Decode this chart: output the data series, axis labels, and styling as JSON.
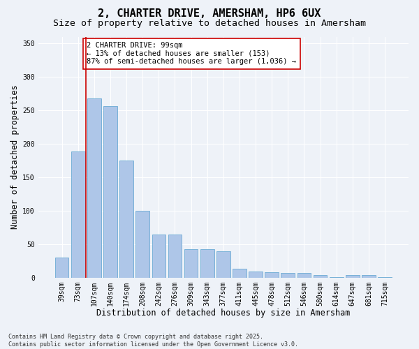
{
  "title": "2, CHARTER DRIVE, AMERSHAM, HP6 6UX",
  "subtitle": "Size of property relative to detached houses in Amersham",
  "xlabel": "Distribution of detached houses by size in Amersham",
  "ylabel": "Number of detached properties",
  "categories": [
    "39sqm",
    "73sqm",
    "107sqm",
    "140sqm",
    "174sqm",
    "208sqm",
    "242sqm",
    "276sqm",
    "309sqm",
    "343sqm",
    "377sqm",
    "411sqm",
    "445sqm",
    "478sqm",
    "512sqm",
    "546sqm",
    "580sqm",
    "614sqm",
    "647sqm",
    "681sqm",
    "715sqm"
  ],
  "values": [
    30,
    188,
    268,
    256,
    175,
    100,
    64,
    64,
    42,
    42,
    39,
    13,
    9,
    8,
    7,
    7,
    4,
    1,
    4,
    4,
    1
  ],
  "bar_color": "#aec6e8",
  "bar_edge_color": "#6aaad4",
  "vline_x_index": 2,
  "vline_color": "#cc0000",
  "annotation_text": "2 CHARTER DRIVE: 99sqm\n← 13% of detached houses are smaller (153)\n87% of semi-detached houses are larger (1,036) →",
  "annotation_box_color": "#ffffff",
  "annotation_box_edge": "#cc0000",
  "ylim": [
    0,
    360
  ],
  "yticks": [
    0,
    50,
    100,
    150,
    200,
    250,
    300,
    350
  ],
  "bg_color": "#eef2f8",
  "plot_bg_color": "#eef2f8",
  "grid_color": "#ffffff",
  "footer": "Contains HM Land Registry data © Crown copyright and database right 2025.\nContains public sector information licensed under the Open Government Licence v3.0.",
  "title_fontsize": 11,
  "subtitle_fontsize": 9.5,
  "xlabel_fontsize": 8.5,
  "ylabel_fontsize": 8.5,
  "tick_fontsize": 7,
  "annotation_fontsize": 7.5,
  "footer_fontsize": 6
}
